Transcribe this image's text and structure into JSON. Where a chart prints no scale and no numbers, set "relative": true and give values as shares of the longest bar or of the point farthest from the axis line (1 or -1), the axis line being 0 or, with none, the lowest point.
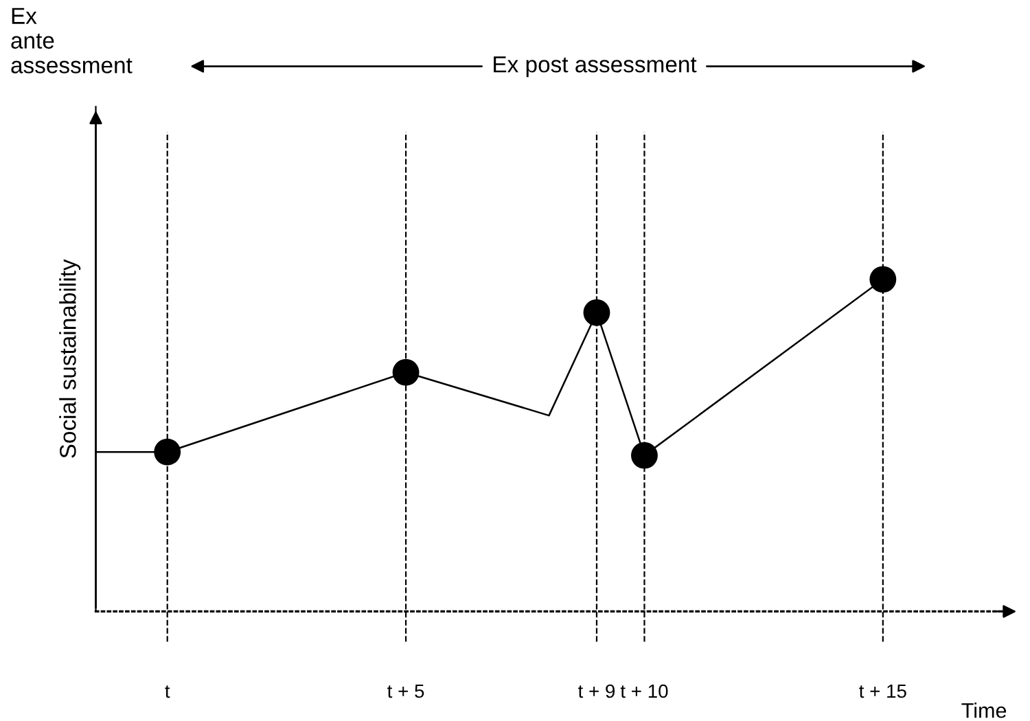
{
  "chart_data": {
    "type": "line",
    "relative": true,
    "xlabel": "Time",
    "ylabel": "Social sustainability",
    "xlim": [
      -1.5,
      17.5
    ],
    "xticks": [
      {
        "value": 0,
        "label": "t"
      },
      {
        "value": 5,
        "label": "t + 5"
      },
      {
        "value": 9,
        "label": "t + 9"
      },
      {
        "value": 10,
        "label": "t + 10"
      },
      {
        "value": 15,
        "label": "t + 15"
      }
    ],
    "series": [
      {
        "color": "#000000",
        "marker": "none",
        "x": [
          -1.5,
          0,
          5,
          8,
          9,
          10,
          15
        ],
        "values": [
          0.48,
          0.48,
          0.72,
          0.59,
          0.9,
          0.47,
          1
        ]
      },
      {
        "type": "scatter",
        "color": "#000000",
        "marker": "circle",
        "x": [
          0,
          5,
          9,
          10,
          15
        ],
        "values": [
          0.48,
          0.72,
          0.9,
          0.47,
          1
        ]
      }
    ],
    "ref_lines": [
      {
        "axis": "x",
        "value": 0,
        "line_style": "dashed",
        "color": "#000000"
      },
      {
        "axis": "x",
        "value": 5,
        "line_style": "dashed",
        "color": "#000000"
      },
      {
        "axis": "x",
        "value": 9,
        "line_style": "dashed",
        "color": "#000000"
      },
      {
        "axis": "x",
        "value": 10,
        "line_style": "dashed",
        "color": "#000000"
      },
      {
        "axis": "x",
        "value": 15,
        "line_style": "dashed",
        "color": "#000000"
      }
    ],
    "annotations": [
      "Ex ante assessment",
      "Ex post assessment"
    ],
    "grid": false,
    "legend": false
  }
}
